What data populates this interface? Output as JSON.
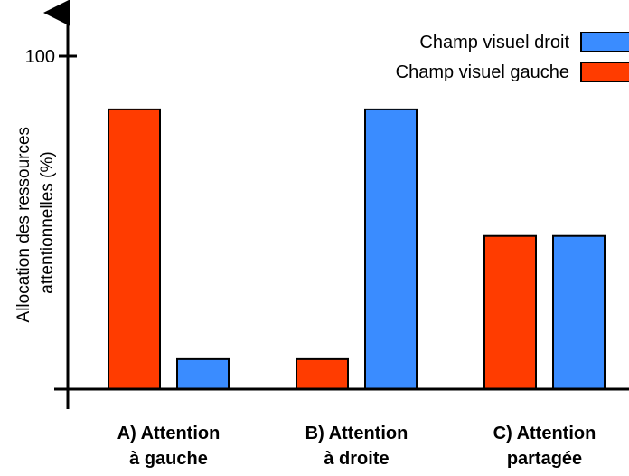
{
  "chart_data": {
    "type": "bar",
    "categories": [
      [
        "A) Attention",
        "à gauche"
      ],
      [
        "B) Attention",
        "à droite"
      ],
      [
        "C) Attention",
        "partagée"
      ]
    ],
    "series": [
      {
        "name": "Champ visuel gauche",
        "color": "#ff3c00",
        "values": [
          84,
          9,
          46
        ]
      },
      {
        "name": "Champ visuel droit",
        "color": "#3a8cff",
        "values": [
          9,
          84,
          46
        ]
      }
    ],
    "ylabel": [
      "Allocation des ressources",
      "attentionnelles (%)"
    ],
    "yticks": [
      100
    ],
    "ylim": [
      0,
      108
    ],
    "legend": "top-right",
    "grid": false
  }
}
